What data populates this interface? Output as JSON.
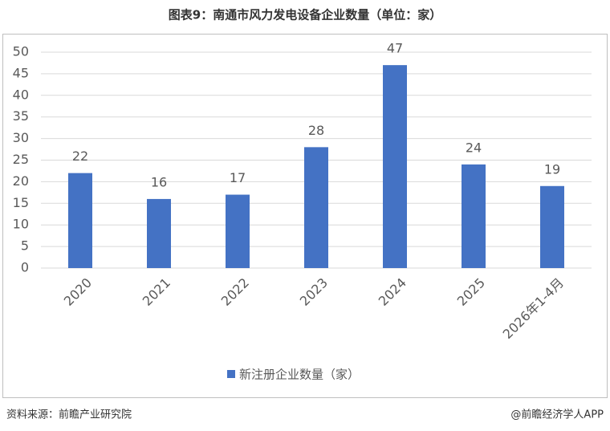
{
  "chart_data": {
    "type": "bar",
    "title": "图表9：南通市风力发电设备企业数量（单位：家）",
    "categories": [
      "2020",
      "2021",
      "2022",
      "2023",
      "2024",
      "2025",
      "2026年1-4月"
    ],
    "series": [
      {
        "name": "新注册企业数量（家）",
        "color": "#4472c4",
        "values": [
          22,
          16,
          17,
          28,
          47,
          24,
          19
        ]
      }
    ],
    "ylim": [
      0,
      50
    ],
    "yticks": [
      0,
      5,
      10,
      15,
      20,
      25,
      30,
      35,
      40,
      45,
      50
    ],
    "grid": true,
    "legend": "bottom",
    "source": "资料来源：前瞻产业研究院",
    "credit": "@前瞻经济学人APP"
  }
}
